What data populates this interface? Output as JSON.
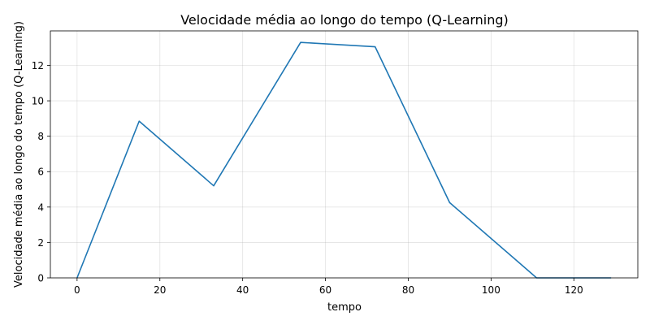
{
  "chart_data": {
    "type": "line",
    "title": "Velocidade média ao longo do tempo (Q-Learning)",
    "xlabel": "tempo",
    "ylabel": "Velocidade média ao longo do tempo (Q-Learning)",
    "xlim": [
      -6.45,
      135.45
    ],
    "ylim": [
      0,
      13.95
    ],
    "xticks": [
      0,
      20,
      40,
      60,
      80,
      100,
      120
    ],
    "yticks": [
      0,
      2,
      4,
      6,
      8,
      10,
      12
    ],
    "grid": true,
    "series": [
      {
        "color": "#1f77b4",
        "x": [
          0,
          15,
          33,
          54,
          72,
          90,
          111,
          129
        ],
        "y": [
          0,
          8.85,
          5.2,
          13.3,
          13.05,
          4.25,
          0,
          0
        ]
      }
    ]
  }
}
